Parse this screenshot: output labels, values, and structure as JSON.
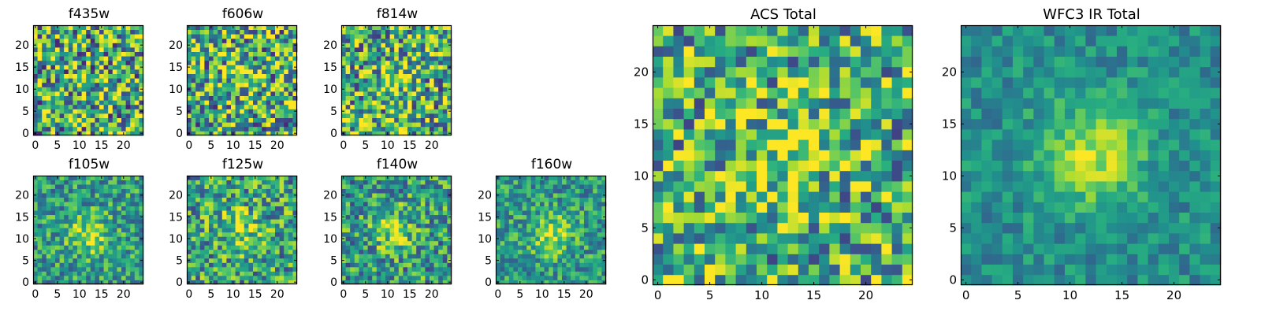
{
  "figure": {
    "background": "#ffffff"
  },
  "colormap": {
    "name": "viridis",
    "axes_color": "#000000"
  },
  "chart_data": [
    {
      "id": "f435w",
      "type": "heatmap",
      "title": "f435w",
      "grid_size": [
        25,
        25
      ],
      "xlim": [
        -0.5,
        24.5
      ],
      "ylim": [
        -0.5,
        24.5
      ],
      "xticks": [
        0,
        5,
        10,
        15,
        20
      ],
      "yticks": [
        0,
        5,
        10,
        15,
        20
      ],
      "xticklabels": [
        "0",
        "5",
        "10",
        "15",
        "20"
      ],
      "yticklabels": [
        "0",
        "5",
        "10",
        "15",
        "20"
      ],
      "grid": false,
      "colormap": "viridis",
      "value_range": [
        0,
        1
      ],
      "peak": [
        12,
        8
      ],
      "peak_amplitude": 0.08,
      "noise_amplitude": 0.5,
      "background_level": 0.6
    },
    {
      "id": "f606w",
      "type": "heatmap",
      "title": "f606w",
      "grid_size": [
        25,
        25
      ],
      "xlim": [
        -0.5,
        24.5
      ],
      "ylim": [
        -0.5,
        24.5
      ],
      "xticks": [
        0,
        5,
        10,
        15,
        20
      ],
      "yticks": [
        0,
        5,
        10,
        15,
        20
      ],
      "xticklabels": [
        "0",
        "5",
        "10",
        "15",
        "20"
      ],
      "yticklabels": [
        "0",
        "5",
        "10",
        "15",
        "20"
      ],
      "grid": false,
      "colormap": "viridis",
      "value_range": [
        0,
        1
      ],
      "peak": [
        12,
        12
      ],
      "peak_amplitude": 0.18,
      "noise_amplitude": 0.48,
      "background_level": 0.6
    },
    {
      "id": "f814w",
      "type": "heatmap",
      "title": "f814w",
      "grid_size": [
        25,
        25
      ],
      "xlim": [
        -0.5,
        24.5
      ],
      "ylim": [
        -0.5,
        24.5
      ],
      "xticks": [
        0,
        5,
        10,
        15,
        20
      ],
      "yticks": [
        0,
        5,
        10,
        15,
        20
      ],
      "xticklabels": [
        "0",
        "5",
        "10",
        "15",
        "20"
      ],
      "yticklabels": [
        "0",
        "5",
        "10",
        "15",
        "20"
      ],
      "grid": false,
      "colormap": "viridis",
      "value_range": [
        0,
        1
      ],
      "peak": [
        12,
        12
      ],
      "peak_amplitude": 0.18,
      "noise_amplitude": 0.48,
      "background_level": 0.62
    },
    {
      "id": "f105w",
      "type": "heatmap",
      "title": "f105w",
      "grid_size": [
        25,
        25
      ],
      "xlim": [
        -0.5,
        24.5
      ],
      "ylim": [
        -0.5,
        24.5
      ],
      "xticks": [
        0,
        5,
        10,
        15,
        20
      ],
      "yticks": [
        0,
        5,
        10,
        15,
        20
      ],
      "xticklabels": [
        "0",
        "5",
        "10",
        "15",
        "20"
      ],
      "yticklabels": [
        "0",
        "5",
        "10",
        "15",
        "20"
      ],
      "grid": false,
      "colormap": "viridis",
      "value_range": [
        0,
        1
      ],
      "peak": [
        12,
        11
      ],
      "peak_amplitude": 0.32,
      "noise_amplitude": 0.28,
      "background_level": 0.55
    },
    {
      "id": "f125w",
      "type": "heatmap",
      "title": "f125w",
      "grid_size": [
        25,
        25
      ],
      "xlim": [
        -0.5,
        24.5
      ],
      "ylim": [
        -0.5,
        24.5
      ],
      "xticks": [
        0,
        5,
        10,
        15,
        20
      ],
      "yticks": [
        0,
        5,
        10,
        15,
        20
      ],
      "xticklabels": [
        "0",
        "5",
        "10",
        "15",
        "20"
      ],
      "yticklabels": [
        "0",
        "5",
        "10",
        "15",
        "20"
      ],
      "grid": false,
      "colormap": "viridis",
      "value_range": [
        0,
        1
      ],
      "peak": [
        12,
        12
      ],
      "peak_amplitude": 0.28,
      "noise_amplitude": 0.36,
      "background_level": 0.57
    },
    {
      "id": "f140w",
      "type": "heatmap",
      "title": "f140w",
      "grid_size": [
        25,
        25
      ],
      "xlim": [
        -0.5,
        24.5
      ],
      "ylim": [
        -0.5,
        24.5
      ],
      "xticks": [
        0,
        5,
        10,
        15,
        20
      ],
      "yticks": [
        0,
        5,
        10,
        15,
        20
      ],
      "xticklabels": [
        "0",
        "5",
        "10",
        "15",
        "20"
      ],
      "yticklabels": [
        "0",
        "5",
        "10",
        "15",
        "20"
      ],
      "grid": false,
      "colormap": "viridis",
      "value_range": [
        0,
        1
      ],
      "peak": [
        11,
        12
      ],
      "peak_amplitude": 0.3,
      "noise_amplitude": 0.34,
      "background_level": 0.55
    },
    {
      "id": "f160w",
      "type": "heatmap",
      "title": "f160w",
      "grid_size": [
        25,
        25
      ],
      "xlim": [
        -0.5,
        24.5
      ],
      "ylim": [
        -0.5,
        24.5
      ],
      "xticks": [
        0,
        5,
        10,
        15,
        20
      ],
      "yticks": [
        0,
        5,
        10,
        15,
        20
      ],
      "xticklabels": [
        "0",
        "5",
        "10",
        "15",
        "20"
      ],
      "yticklabels": [
        "0",
        "5",
        "10",
        "15",
        "20"
      ],
      "grid": false,
      "colormap": "viridis",
      "value_range": [
        0,
        1
      ],
      "peak": [
        12,
        11
      ],
      "peak_amplitude": 0.3,
      "noise_amplitude": 0.26,
      "background_level": 0.55
    },
    {
      "id": "acs-total",
      "type": "heatmap",
      "title": "ACS Total",
      "grid_size": [
        25,
        25
      ],
      "xlim": [
        -0.5,
        24.5
      ],
      "ylim": [
        -0.5,
        24.5
      ],
      "xticks": [
        0,
        5,
        10,
        15,
        20
      ],
      "yticks": [
        0,
        5,
        10,
        15,
        20
      ],
      "xticklabels": [
        "0",
        "5",
        "10",
        "15",
        "20"
      ],
      "yticklabels": [
        "0",
        "5",
        "10",
        "15",
        "20"
      ],
      "grid": false,
      "colormap": "viridis",
      "value_range": [
        0,
        1
      ],
      "peak": [
        12,
        12
      ],
      "peak_amplitude": 0.2,
      "noise_amplitude": 0.42,
      "background_level": 0.62
    },
    {
      "id": "wfc3-ir-total",
      "type": "heatmap",
      "title": "WFC3 IR Total",
      "grid_size": [
        25,
        25
      ],
      "xlim": [
        -0.5,
        24.5
      ],
      "ylim": [
        -0.5,
        24.5
      ],
      "xticks": [
        0,
        5,
        10,
        15,
        20
      ],
      "yticks": [
        0,
        5,
        10,
        15,
        20
      ],
      "xticklabels": [
        "0",
        "5",
        "10",
        "15",
        "20"
      ],
      "yticklabels": [
        "0",
        "5",
        "10",
        "15",
        "20"
      ],
      "grid": false,
      "colormap": "viridis",
      "value_range": [
        0,
        1
      ],
      "peak": [
        12,
        12
      ],
      "peak_amplitude": 0.42,
      "noise_amplitude": 0.16,
      "background_level": 0.5
    }
  ]
}
